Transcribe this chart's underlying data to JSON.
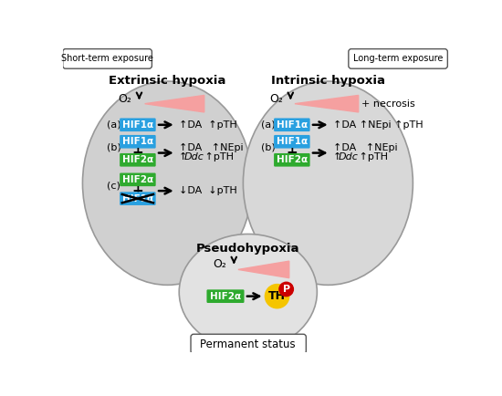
{
  "bg_color": "#ffffff",
  "ellipse_fill_left": "#d0d0d0",
  "ellipse_fill_right": "#d8d8d8",
  "ellipse_fill_bot": "#e2e2e2",
  "ellipse_edge": "#aaaaaa",
  "hif1a_color": "#29a0e0",
  "hif2a_color": "#2eaa2e",
  "th_color": "#f5c500",
  "p_color": "#cc0000",
  "tri_color": "#f5a0a0",
  "short_term_label": "Short-term exposure",
  "long_term_label": "Long-term exposure",
  "extrinsic_title": "Extrinsic hypoxia",
  "intrinsic_title": "Intrinsic hypoxia",
  "pseudo_title": "Pseudohypoxia",
  "permanent_label": "Permanent status",
  "necrosis_label": "+ necrosis"
}
